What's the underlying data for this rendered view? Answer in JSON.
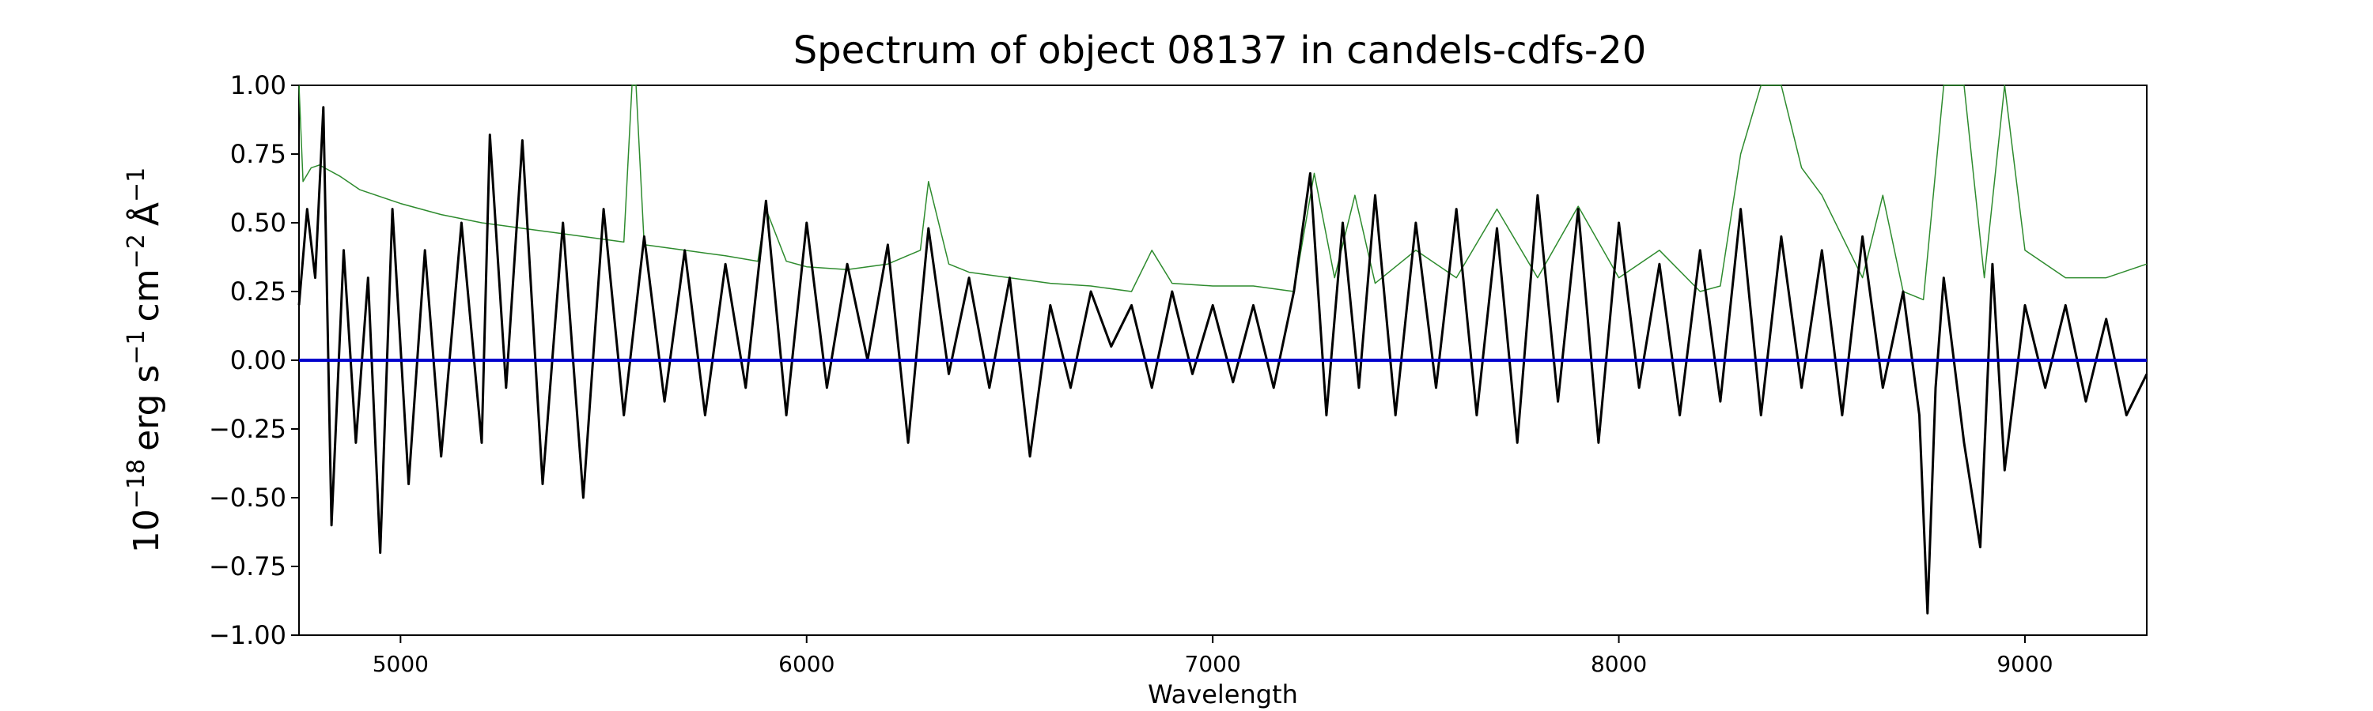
{
  "chart_data": {
    "type": "line",
    "title": "Spectrum of object 08137 in candels-cdfs-20",
    "xlabel": "Wavelength",
    "ylabel": {
      "base": "10",
      "exp": "−18",
      "unit1": "erg s",
      "exp1": "−1",
      "unit2": "cm",
      "exp2": "−2",
      "unit3": "Å",
      "exp3": "−1"
    },
    "xlim": [
      4750,
      9300
    ],
    "ylim": [
      -1.0,
      1.0
    ],
    "xticks": [
      5000,
      6000,
      7000,
      8000,
      9000
    ],
    "xtick_labels": [
      "5000",
      "6000",
      "7000",
      "8000",
      "9000"
    ],
    "yticks": [
      1.0,
      0.75,
      0.5,
      0.25,
      0.0,
      -0.25,
      -0.5,
      -0.75,
      -1.0
    ],
    "ytick_labels": [
      "1.00",
      "0.75",
      "0.50",
      "0.25",
      "0.00",
      "−0.25",
      "−0.50",
      "−0.75",
      "−1.00"
    ],
    "grid": false,
    "series": [
      {
        "role": "flux",
        "color": "#000000",
        "x": [
          4750,
          4770,
          4790,
          4810,
          4830,
          4860,
          4890,
          4920,
          4950,
          4980,
          5020,
          5060,
          5100,
          5150,
          5200,
          5220,
          5260,
          5300,
          5350,
          5400,
          5450,
          5500,
          5550,
          5600,
          5650,
          5700,
          5750,
          5800,
          5850,
          5900,
          5950,
          6000,
          6050,
          6100,
          6150,
          6200,
          6250,
          6300,
          6350,
          6400,
          6450,
          6500,
          6550,
          6600,
          6650,
          6700,
          6750,
          6800,
          6850,
          6900,
          6950,
          7000,
          7050,
          7100,
          7150,
          7200,
          7240,
          7280,
          7320,
          7360,
          7400,
          7450,
          7500,
          7550,
          7600,
          7650,
          7700,
          7750,
          7800,
          7850,
          7900,
          7950,
          8000,
          8050,
          8100,
          8150,
          8200,
          8250,
          8300,
          8350,
          8400,
          8450,
          8500,
          8550,
          8600,
          8650,
          8700,
          8740,
          8760,
          8780,
          8800,
          8850,
          8890,
          8920,
          8950,
          9000,
          9050,
          9100,
          9150,
          9200,
          9250,
          9300
        ],
        "y": [
          0.2,
          0.55,
          0.3,
          0.92,
          -0.6,
          0.4,
          -0.3,
          0.3,
          -0.7,
          0.55,
          -0.45,
          0.4,
          -0.35,
          0.5,
          -0.3,
          0.82,
          -0.1,
          0.8,
          -0.45,
          0.5,
          -0.5,
          0.55,
          -0.2,
          0.45,
          -0.15,
          0.4,
          -0.2,
          0.35,
          -0.1,
          0.58,
          -0.2,
          0.5,
          -0.1,
          0.35,
          0.0,
          0.42,
          -0.3,
          0.48,
          -0.05,
          0.3,
          -0.1,
          0.3,
          -0.35,
          0.2,
          -0.1,
          0.25,
          0.05,
          0.2,
          -0.1,
          0.25,
          -0.05,
          0.2,
          -0.08,
          0.2,
          -0.1,
          0.25,
          0.68,
          -0.2,
          0.5,
          -0.1,
          0.6,
          -0.2,
          0.5,
          -0.1,
          0.55,
          -0.2,
          0.48,
          -0.3,
          0.6,
          -0.15,
          0.55,
          -0.3,
          0.5,
          -0.1,
          0.35,
          -0.2,
          0.4,
          -0.15,
          0.55,
          -0.2,
          0.45,
          -0.1,
          0.4,
          -0.2,
          0.45,
          -0.1,
          0.25,
          -0.2,
          -0.92,
          -0.1,
          0.3,
          -0.3,
          -0.68,
          0.35,
          -0.4,
          0.2,
          -0.1,
          0.2,
          -0.15,
          0.15,
          -0.2,
          -0.05
        ]
      },
      {
        "role": "model",
        "color": "#2e8b2e",
        "x": [
          4750,
          4760,
          4780,
          4800,
          4850,
          4900,
          5000,
          5100,
          5200,
          5300,
          5400,
          5500,
          5550,
          5570,
          5580,
          5600,
          5700,
          5800,
          5880,
          5900,
          5950,
          6000,
          6100,
          6200,
          6280,
          6300,
          6350,
          6400,
          6500,
          6600,
          6700,
          6800,
          6850,
          6900,
          7000,
          7100,
          7200,
          7250,
          7300,
          7350,
          7400,
          7500,
          7600,
          7700,
          7800,
          7900,
          8000,
          8100,
          8200,
          8250,
          8300,
          8350,
          8400,
          8450,
          8500,
          8600,
          8650,
          8700,
          8750,
          8800,
          8850,
          8900,
          8950,
          9000,
          9100,
          9200,
          9300
        ],
        "y": [
          1.0,
          0.65,
          0.7,
          0.71,
          0.67,
          0.62,
          0.57,
          0.53,
          0.5,
          0.48,
          0.46,
          0.44,
          0.43,
          1.0,
          1.0,
          0.42,
          0.4,
          0.38,
          0.36,
          0.55,
          0.36,
          0.34,
          0.33,
          0.35,
          0.4,
          0.65,
          0.35,
          0.32,
          0.3,
          0.28,
          0.27,
          0.25,
          0.4,
          0.28,
          0.27,
          0.27,
          0.25,
          0.68,
          0.3,
          0.6,
          0.28,
          0.4,
          0.3,
          0.55,
          0.3,
          0.56,
          0.3,
          0.4,
          0.25,
          0.27,
          0.75,
          1.0,
          1.0,
          0.7,
          0.6,
          0.3,
          0.6,
          0.25,
          0.22,
          1.0,
          1.0,
          0.3,
          1.0,
          0.4,
          0.3,
          0.3,
          0.35
        ]
      },
      {
        "role": "zero",
        "color": "#0000cc",
        "x": [
          4750,
          9300
        ],
        "y": [
          0.0,
          0.0
        ]
      }
    ]
  }
}
